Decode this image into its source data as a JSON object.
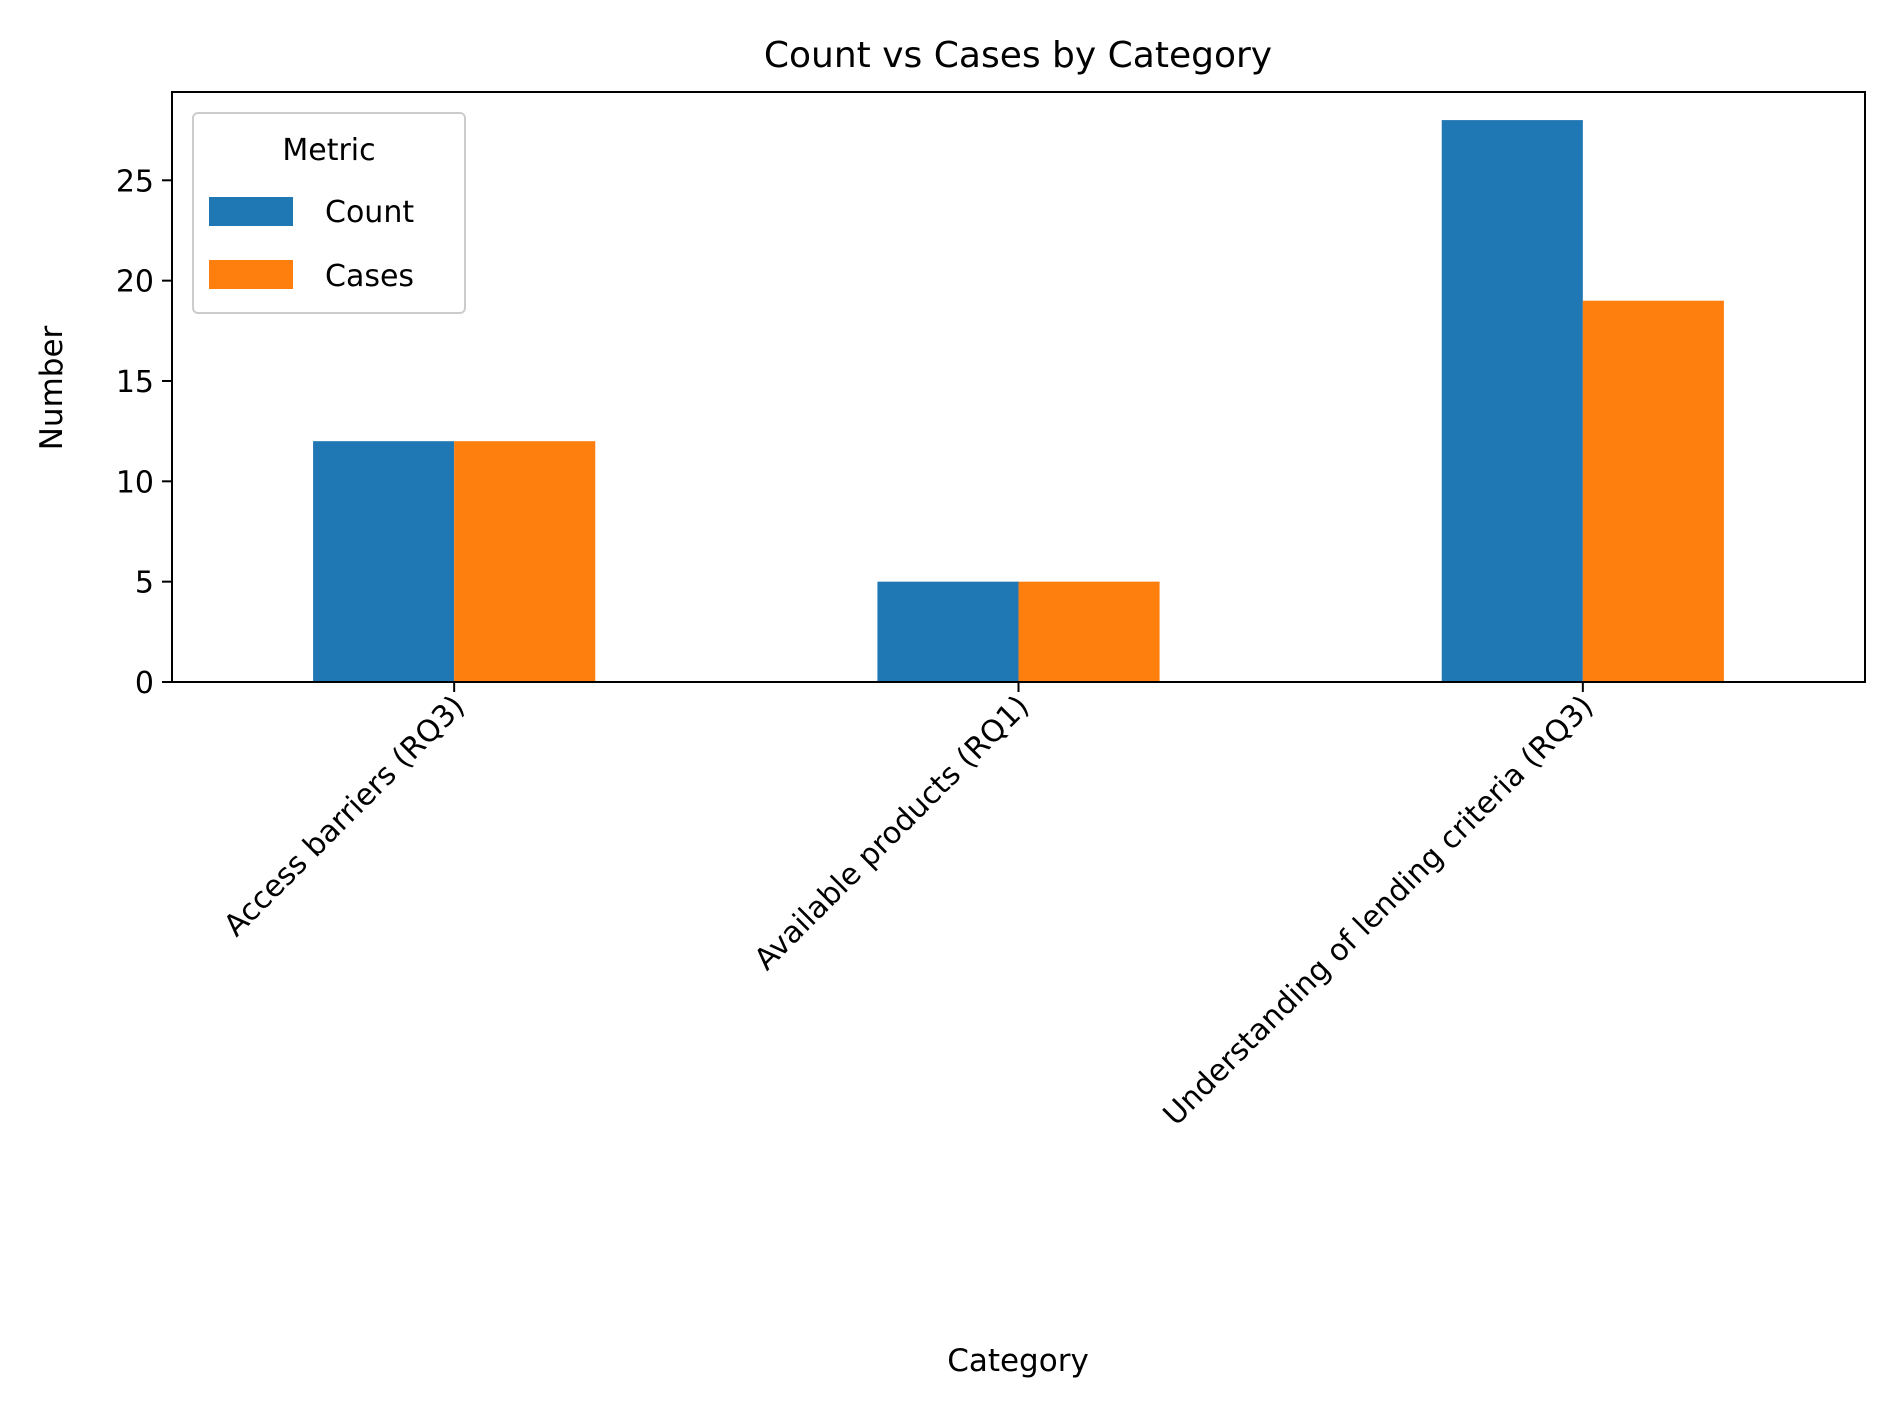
{
  "chart_data": {
    "type": "bar",
    "title": "Count vs Cases by Category",
    "xlabel": "Category",
    "ylabel": "Number",
    "categories": [
      "Access barriers (RQ3)",
      "Available products (RQ1)",
      "Understanding of lending criteria (RQ3)"
    ],
    "series": [
      {
        "name": "Count",
        "values": [
          12,
          5,
          28
        ],
        "color": "#1f77b4"
      },
      {
        "name": "Cases",
        "values": [
          12,
          5,
          19
        ],
        "color": "#ff7f0e"
      }
    ],
    "ylim": [
      0,
      29.4
    ],
    "yticks": [
      0,
      5,
      10,
      15,
      20,
      25
    ],
    "legend": {
      "title": "Metric",
      "placement": "upper-left"
    },
    "grid": false
  }
}
